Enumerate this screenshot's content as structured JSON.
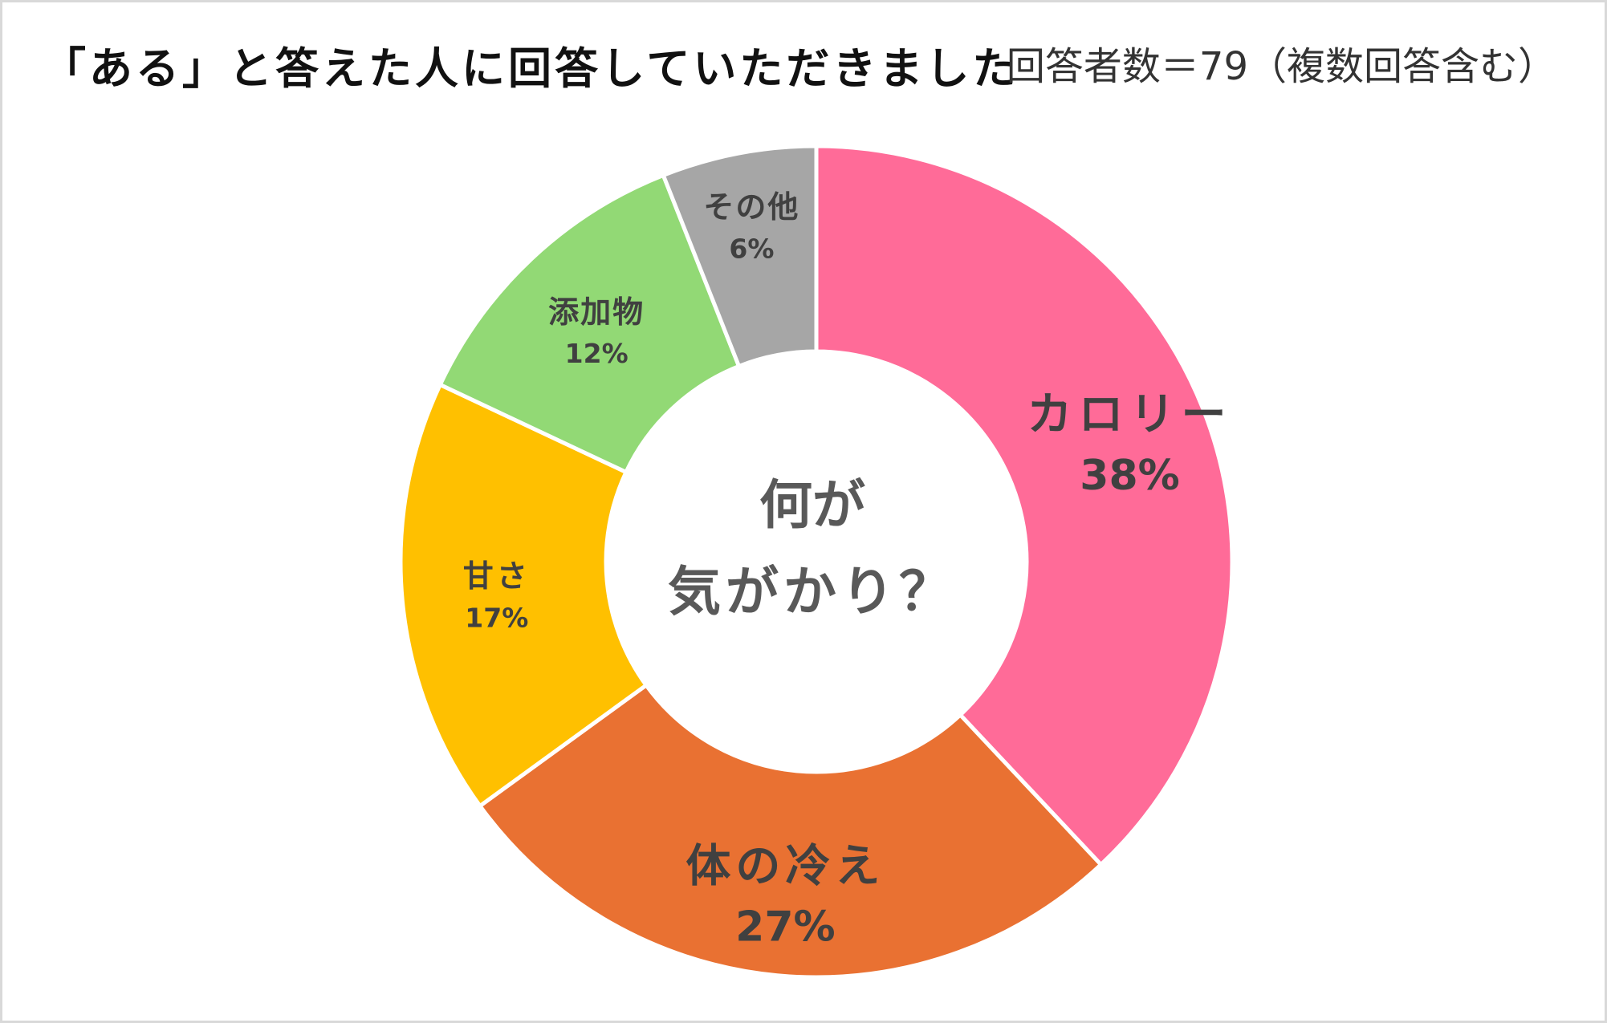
{
  "chart_data": {
    "type": "pie",
    "title": "「ある」と答えた人に回答していただきました",
    "subtitle": "回答者数＝79（複数回答含む）",
    "center_text": [
      "何が",
      "気がかり？"
    ],
    "categories": [
      "カロリー",
      "体の冷え",
      "甘さ",
      "添加物",
      "その他"
    ],
    "values": [
      38,
      27,
      17,
      12,
      6
    ],
    "value_labels": [
      "38%",
      "27%",
      "17%",
      "12%",
      "6%"
    ],
    "colors": [
      "#FF6B98",
      "#E97132",
      "#FFC000",
      "#92D975",
      "#A6A6A6"
    ],
    "donut": true,
    "legend": "none"
  }
}
